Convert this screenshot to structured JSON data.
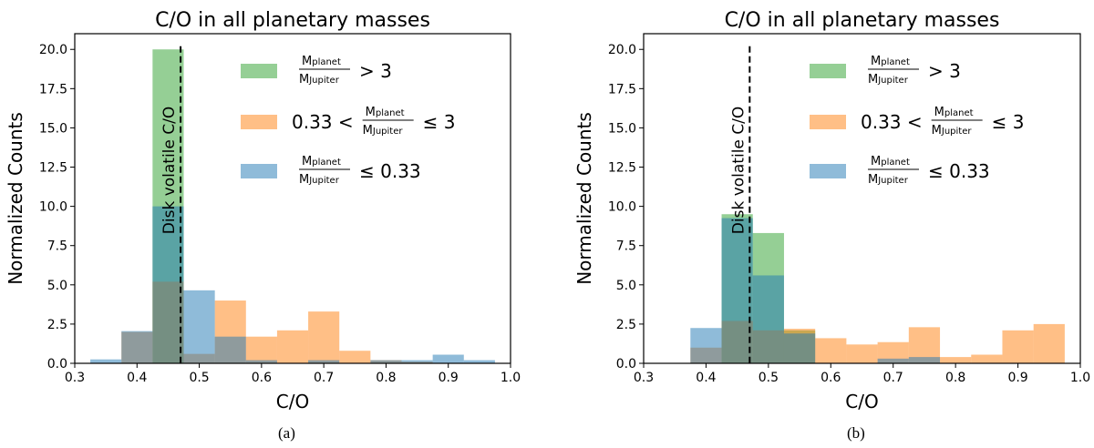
{
  "colors": {
    "gt3": "#2ca02c",
    "mid": "#ff7f0e",
    "le033": "#1f77b4",
    "vline": "#000000"
  },
  "chart_data": [
    {
      "type": "histogram",
      "caption": "(a)",
      "title": "C/O in all planetary masses",
      "xlabel": "C/O",
      "ylabel": "Normalized Counts",
      "xlim": [
        0.3,
        1.0
      ],
      "ylim": [
        0,
        21
      ],
      "xticks": [
        "0.3",
        "0.4",
        "0.5",
        "0.6",
        "0.7",
        "0.8",
        "0.9",
        "1.0"
      ],
      "yticks": [
        "0.0",
        "2.5",
        "5.0",
        "7.5",
        "10.0",
        "12.5",
        "15.0",
        "17.5",
        "20.0"
      ],
      "vline": {
        "x": 0.47,
        "label": "Disk volatile C/O"
      },
      "legend": [
        {
          "key": "gt3",
          "num": "M",
          "num_sub": "planet",
          "den": "M",
          "den_sub": "Jupiter",
          "relation": "> 3"
        },
        {
          "key": "mid",
          "prefix": "0.33 <",
          "num": "M",
          "num_sub": "planet",
          "den": "M",
          "den_sub": "Jupiter",
          "relation": "≤ 3"
        },
        {
          "key": "le033",
          "num": "M",
          "num_sub": "planet",
          "den": "M",
          "den_sub": "Jupiter",
          "relation": "≤ 0.33"
        }
      ],
      "series": [
        {
          "key": "gt3",
          "bins": [
            [
              0.425,
              0.475,
              20.0
            ]
          ]
        },
        {
          "key": "mid",
          "bins": [
            [
              0.375,
              0.425,
              2.0
            ],
            [
              0.425,
              0.475,
              5.2
            ],
            [
              0.475,
              0.525,
              0.6
            ],
            [
              0.525,
              0.575,
              4.0
            ],
            [
              0.575,
              0.625,
              1.7
            ],
            [
              0.625,
              0.675,
              2.1
            ],
            [
              0.675,
              0.725,
              3.3
            ],
            [
              0.725,
              0.775,
              0.8
            ],
            [
              0.775,
              0.825,
              0.2
            ],
            [
              0.825,
              0.875,
              0.1
            ]
          ]
        },
        {
          "key": "le033",
          "bins": [
            [
              0.325,
              0.375,
              0.25
            ],
            [
              0.375,
              0.425,
              2.05
            ],
            [
              0.425,
              0.475,
              10.0
            ],
            [
              0.475,
              0.525,
              4.65
            ],
            [
              0.525,
              0.575,
              1.7
            ],
            [
              0.575,
              0.625,
              0.2
            ],
            [
              0.675,
              0.725,
              0.2
            ],
            [
              0.775,
              0.825,
              0.2
            ],
            [
              0.825,
              0.875,
              0.2
            ],
            [
              0.875,
              0.925,
              0.55
            ],
            [
              0.925,
              0.975,
              0.2
            ]
          ]
        }
      ]
    },
    {
      "type": "histogram",
      "caption": "(b)",
      "title": "C/O in all planetary masses",
      "xlabel": "C/O",
      "ylabel": "Normalized Counts",
      "xlim": [
        0.3,
        1.0
      ],
      "ylim": [
        0,
        21
      ],
      "xticks": [
        "0.3",
        "0.4",
        "0.5",
        "0.6",
        "0.7",
        "0.8",
        "0.9",
        "1.0"
      ],
      "yticks": [
        "0.0",
        "2.5",
        "5.0",
        "7.5",
        "10.0",
        "12.5",
        "15.0",
        "17.5",
        "20.0"
      ],
      "vline": {
        "x": 0.47,
        "label": "Disk volatile C/O"
      },
      "legend": [
        {
          "key": "gt3",
          "num": "M",
          "num_sub": "planet",
          "den": "M",
          "den_sub": "Jupiter",
          "relation": "> 3"
        },
        {
          "key": "mid",
          "prefix": "0.33 <",
          "num": "M",
          "num_sub": "planet",
          "den": "M",
          "den_sub": "Jupiter",
          "relation": "≤ 3"
        },
        {
          "key": "le033",
          "num": "M",
          "num_sub": "planet",
          "den": "M",
          "den_sub": "Jupiter",
          "relation": "≤ 0.33"
        }
      ],
      "series": [
        {
          "key": "gt3",
          "bins": [
            [
              0.425,
              0.475,
              9.5
            ],
            [
              0.475,
              0.525,
              8.3
            ],
            [
              0.525,
              0.575,
              2.1
            ]
          ]
        },
        {
          "key": "mid",
          "bins": [
            [
              0.375,
              0.425,
              1.0
            ],
            [
              0.425,
              0.475,
              2.7
            ],
            [
              0.475,
              0.525,
              2.1
            ],
            [
              0.525,
              0.575,
              2.2
            ],
            [
              0.575,
              0.625,
              1.6
            ],
            [
              0.625,
              0.675,
              1.2
            ],
            [
              0.675,
              0.725,
              1.35
            ],
            [
              0.725,
              0.775,
              2.3
            ],
            [
              0.775,
              0.825,
              0.4
            ],
            [
              0.825,
              0.875,
              0.55
            ],
            [
              0.875,
              0.925,
              2.1
            ],
            [
              0.925,
              0.975,
              2.5
            ]
          ]
        },
        {
          "key": "le033",
          "bins": [
            [
              0.375,
              0.425,
              2.25
            ],
            [
              0.425,
              0.475,
              9.25
            ],
            [
              0.475,
              0.525,
              5.6
            ],
            [
              0.525,
              0.575,
              1.9
            ],
            [
              0.675,
              0.725,
              0.3
            ],
            [
              0.725,
              0.775,
              0.4
            ]
          ]
        }
      ]
    }
  ]
}
